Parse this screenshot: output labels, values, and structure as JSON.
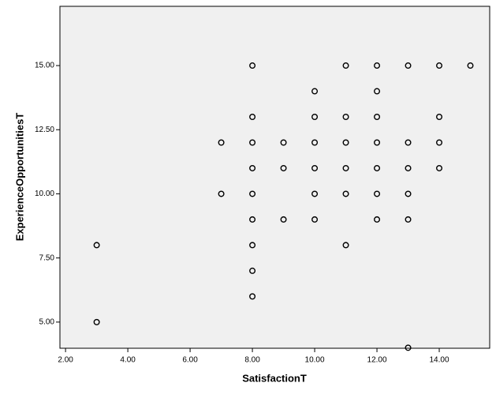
{
  "chart_data": {
    "type": "scatter",
    "x_label": "SatisfactionT",
    "y_label": "ExperienceOpportunitiesT",
    "x": [
      3,
      3,
      7,
      7,
      8,
      8,
      8,
      8,
      8,
      8,
      8,
      8,
      8,
      9,
      9,
      9,
      10,
      10,
      10,
      10,
      10,
      10,
      11,
      11,
      11,
      11,
      11,
      11,
      12,
      12,
      12,
      12,
      12,
      12,
      12,
      13,
      13,
      13,
      13,
      13,
      13,
      14,
      14,
      14,
      14,
      15
    ],
    "values": [
      8,
      5,
      12,
      10,
      15,
      13,
      12,
      11,
      10,
      9,
      8,
      7,
      6,
      12,
      11,
      9,
      14,
      13,
      12,
      11,
      10,
      9,
      15,
      13,
      12,
      11,
      10,
      8,
      15,
      14,
      13,
      12,
      11,
      10,
      9,
      15,
      12,
      11,
      10,
      9,
      4,
      15,
      13,
      12,
      11,
      15
    ],
    "color": "#000000",
    "background": "#f0f0f0",
    "xlim": [
      1.82,
      15.62
    ],
    "ylim": [
      3.98,
      17.31
    ],
    "xticks": [
      {
        "value": 2,
        "label": "2.00"
      },
      {
        "value": 4,
        "label": "4.00"
      },
      {
        "value": 6,
        "label": "6.00"
      },
      {
        "value": 8,
        "label": "8.00"
      },
      {
        "value": 10,
        "label": "10.00"
      },
      {
        "value": 12,
        "label": "12.00"
      },
      {
        "value": 14,
        "label": "14.00"
      }
    ],
    "yticks": [
      {
        "value": 5,
        "label": "5.00"
      },
      {
        "value": 7.5,
        "label": "7.50"
      },
      {
        "value": 10,
        "label": "10.00"
      },
      {
        "value": 12.5,
        "label": "12.50"
      },
      {
        "value": 15,
        "label": "15.00"
      }
    ]
  }
}
